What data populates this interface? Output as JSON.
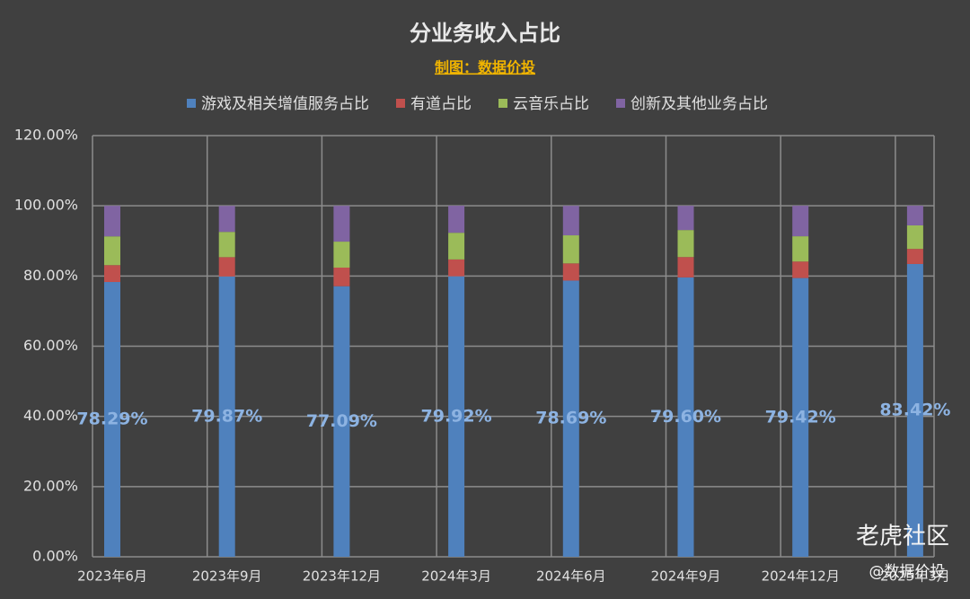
{
  "chart_data": {
    "type": "stacked_bar",
    "title": "分业务收入占比",
    "subtitle": "制图：数据价投",
    "categories": [
      "2023年6月",
      "2023年9月",
      "2023年12月",
      "2024年3月",
      "2024年6月",
      "2024年9月",
      "2024年12月",
      "2025年3月"
    ],
    "series": [
      {
        "name": "游戏及相关增值服务占比",
        "color": "#4f81bd",
        "values": [
          78.29,
          79.87,
          77.09,
          79.92,
          78.69,
          79.6,
          79.42,
          83.42
        ],
        "value_labels": [
          "78.29%",
          "79.87%",
          "77.09%",
          "79.92%",
          "78.69%",
          "79.60%",
          "79.42%",
          "83.42%"
        ]
      },
      {
        "name": "有道占比",
        "color": "#c0504d",
        "values": [
          4.8,
          5.5,
          5.3,
          4.8,
          4.9,
          5.8,
          4.7,
          4.3
        ]
      },
      {
        "name": "云音乐占比",
        "color": "#9bbb59",
        "values": [
          8.2,
          7.2,
          7.4,
          7.6,
          8.0,
          7.7,
          7.2,
          6.7
        ]
      },
      {
        "name": "创新及其他业务占比",
        "color": "#8064a2",
        "values": [
          8.7,
          7.4,
          10.2,
          7.7,
          8.4,
          6.9,
          8.7,
          5.6
        ]
      }
    ],
    "ylim": [
      0,
      120
    ],
    "yticks": [
      {
        "value": 0,
        "label": "0.00%"
      },
      {
        "value": 20,
        "label": "20.00%"
      },
      {
        "value": 40,
        "label": "40.00%"
      },
      {
        "value": 60,
        "label": "60.00%"
      },
      {
        "value": 80,
        "label": "80.00%"
      },
      {
        "value": 100,
        "label": "100.00%"
      },
      {
        "value": 120,
        "label": "120.00%"
      }
    ],
    "grid": true,
    "legend": "top",
    "watermark": "老虎社区",
    "watermark_author": "@数据价投"
  }
}
